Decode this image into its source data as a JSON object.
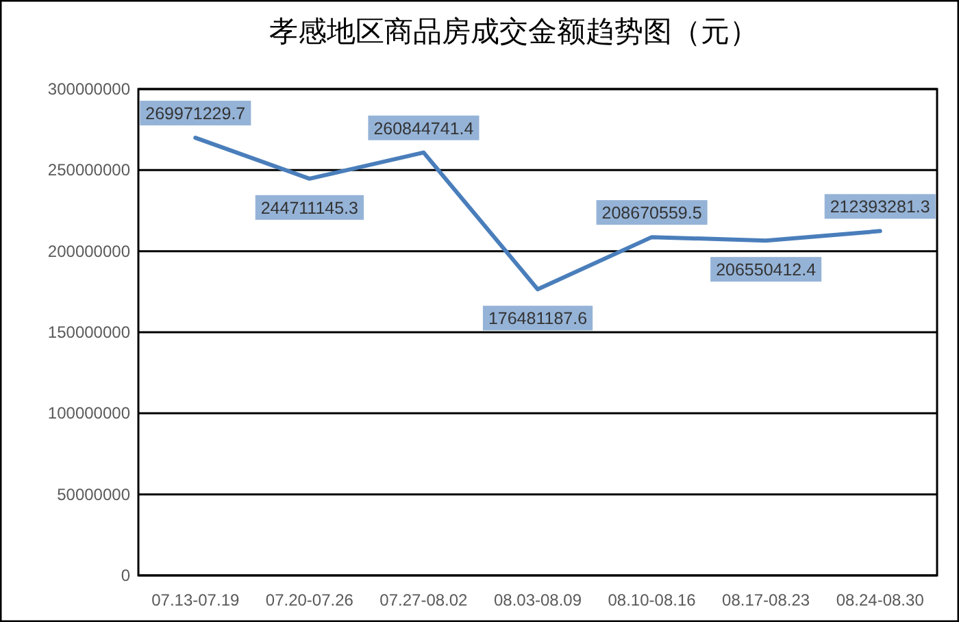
{
  "chart_data": {
    "type": "line",
    "title": "孝感地区商品房成交金额趋势图（元）",
    "categories": [
      "07.13-07.19",
      "07.20-07.26",
      "07.27-08.02",
      "08.03-08.09",
      "08.10-08.16",
      "08.17-08.23",
      "08.24-08.30"
    ],
    "series": [
      {
        "color": "#4a7ebb",
        "values": [
          269971229.7,
          244711145.3,
          260844741.4,
          176481187.6,
          208670559.5,
          206550412.4,
          212393281.3
        ]
      }
    ],
    "ylim": [
      0,
      300000000
    ],
    "yticks": [
      0,
      50000000,
      100000000,
      150000000,
      200000000,
      250000000,
      300000000
    ],
    "grid": "y",
    "data_labels": true,
    "line_style": "solid"
  }
}
